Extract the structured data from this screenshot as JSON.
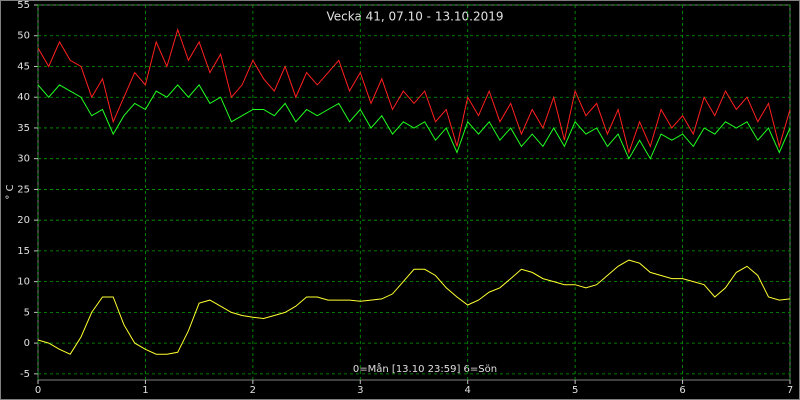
{
  "chart_data": {
    "type": "line",
    "title": "Vecka 41, 07.10 - 13.10.2019",
    "x_label": "0=Mån [13.10 23:59] 6=Sön",
    "y_label": "° C",
    "grid": true,
    "xlim": [
      0,
      7
    ],
    "xticks": [
      0,
      1,
      2,
      3,
      4,
      5,
      6,
      7
    ],
    "ylim": [
      -6,
      55
    ],
    "yticks": [
      -5,
      0,
      5,
      10,
      15,
      20,
      25,
      30,
      35,
      40,
      45,
      50,
      55
    ],
    "x": [
      0,
      0.1,
      0.2,
      0.3,
      0.4,
      0.5,
      0.6,
      0.7,
      0.8,
      0.9,
      1,
      1.1,
      1.2,
      1.3,
      1.4,
      1.5,
      1.6,
      1.7,
      1.8,
      1.9,
      2,
      2.1,
      2.2,
      2.3,
      2.4,
      2.5,
      2.6,
      2.7,
      2.8,
      2.9,
      3,
      3.1,
      3.2,
      3.3,
      3.4,
      3.5,
      3.6,
      3.7,
      3.8,
      3.9,
      4,
      4.1,
      4.2,
      4.3,
      4.4,
      4.5,
      4.6,
      4.7,
      4.8,
      4.9,
      5,
      5.1,
      5.2,
      5.3,
      5.4,
      5.5,
      5.6,
      5.7,
      5.8,
      5.9,
      6,
      6.1,
      6.2,
      6.3,
      6.4,
      6.5,
      6.6,
      6.7,
      6.8,
      6.9,
      7
    ],
    "series": [
      {
        "color": "#ff2020",
        "values": [
          48,
          45,
          49,
          46,
          45,
          40,
          43,
          36,
          40,
          44,
          42,
          49,
          45,
          51,
          46,
          49,
          44,
          47,
          40,
          42,
          46,
          43,
          41,
          45,
          40,
          44,
          42,
          44,
          46,
          41,
          44,
          39,
          43,
          38,
          41,
          39,
          41,
          36,
          38,
          32,
          40,
          37,
          41,
          36,
          39,
          34,
          38,
          35,
          40,
          33,
          41,
          37,
          39,
          34,
          38,
          31,
          36,
          32,
          38,
          35,
          37,
          34,
          40,
          37,
          41,
          38,
          40,
          36,
          39,
          32,
          38
        ]
      },
      {
        "color": "#20ff20",
        "values": [
          42,
          40,
          42,
          41,
          40,
          37,
          38,
          34,
          37,
          39,
          38,
          41,
          40,
          42,
          40,
          42,
          39,
          40,
          36,
          37,
          38,
          38,
          37,
          39,
          36,
          38,
          37,
          38,
          39,
          36,
          38,
          35,
          37,
          34,
          36,
          35,
          36,
          33,
          35,
          31,
          36,
          34,
          36,
          33,
          35,
          32,
          34,
          32,
          35,
          32,
          36,
          34,
          35,
          32,
          34,
          30,
          33,
          30,
          34,
          33,
          34,
          32,
          35,
          34,
          36,
          35,
          36,
          33,
          35,
          31,
          35
        ]
      },
      {
        "color": "#ffff30",
        "values": [
          0.5,
          0,
          -1,
          -1.8,
          1,
          5,
          7.5,
          7.5,
          3,
          0,
          -1,
          -1.8,
          -1.8,
          -1.5,
          2,
          6.5,
          7,
          6,
          5,
          4.5,
          4.2,
          4,
          4.5,
          5,
          6,
          7.5,
          7.5,
          7,
          7,
          7,
          6.8,
          7,
          7.2,
          8,
          10,
          12,
          12,
          11,
          9,
          7.5,
          6.2,
          7,
          8.3,
          9,
          10.5,
          12,
          11.5,
          10.5,
          10,
          9.5,
          9.5,
          9,
          9.5,
          11,
          12.5,
          13.5,
          13,
          11.5,
          11,
          10.5,
          10.5,
          10,
          9.5,
          7.5,
          9,
          11.5,
          12.5,
          11,
          7.5,
          7,
          7.2
        ]
      }
    ]
  }
}
